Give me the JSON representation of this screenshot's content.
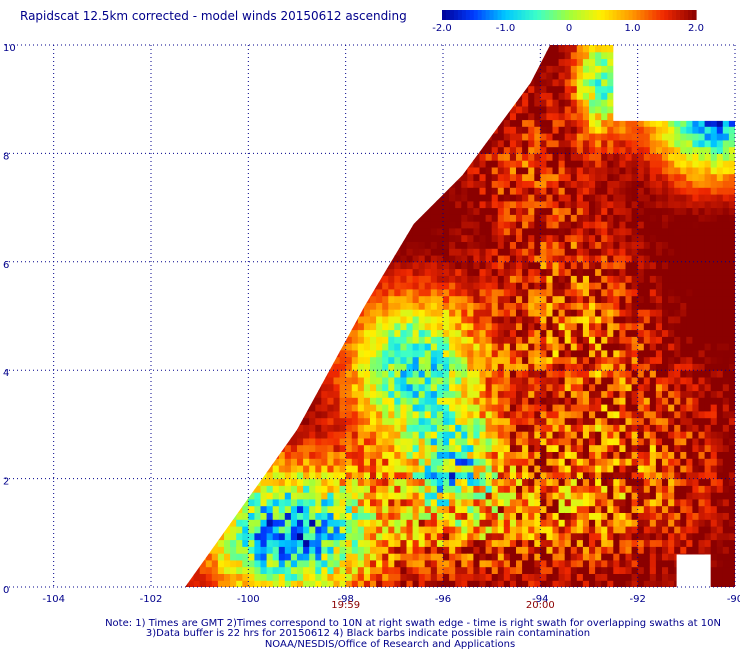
{
  "chart_data": {
    "type": "heatmap",
    "title": "Rapidscat 12.5km corrected - model winds 20150612 ascending",
    "colorbar": {
      "tick_labels": [
        "-2.0",
        "-1.0",
        "0",
        "1.0",
        "2.0"
      ],
      "range": [
        -2.0,
        2.0
      ],
      "colormap": "blue-cyan-green-yellow-orange-red-darkred"
    },
    "x_axis": {
      "range": [
        -105,
        -90
      ],
      "ticks": [
        -104,
        -102,
        -100,
        -98,
        -96,
        -94,
        -92,
        -90
      ],
      "tick_labels": [
        "-104",
        "-102",
        "-100",
        "-98",
        "-96",
        "-94",
        "-92",
        "-90"
      ],
      "grid": "dotted"
    },
    "y_axis": {
      "range": [
        0,
        10
      ],
      "ticks": [
        0,
        2,
        4,
        6,
        8,
        10
      ],
      "tick_labels": [
        "0",
        "2",
        "4",
        "6",
        "8",
        "10"
      ],
      "grid": "dotted"
    },
    "time_labels": [
      {
        "lon": -98,
        "text": "19:59"
      },
      {
        "lon": -94,
        "text": "20:00"
      }
    ],
    "swath_edge": [
      [
        -101.3,
        0
      ],
      [
        -99,
        2.9
      ],
      [
        -97.6,
        5.2
      ],
      [
        -96.6,
        6.7
      ],
      [
        -95.6,
        7.6
      ],
      [
        -94.2,
        9.3
      ],
      [
        -93.8,
        10
      ]
    ],
    "masked_regions": [
      {
        "lat": [
          8.6,
          10
        ],
        "lon": [
          -92.5,
          -90
        ]
      },
      {
        "lat": [
          0,
          0.6
        ],
        "lon": [
          -91.2,
          -90.5
        ]
      }
    ],
    "field_summary": {
      "dominant_value": "> 2.0 (dark red) over most of the swath",
      "negative_regions": [
        "near 8.5-10N, 91-90W (blue)",
        "near 0-2N, 101-98W (cyan)",
        "near 3-5N, 98-96W (cyan)"
      ]
    },
    "notes": [
      "Note: 1) Times are GMT 2)Times correspond to 10N at right swath edge - time is right swath for overlapping swaths at 10N",
      "3)Data buffer is 22 hrs for 20150612 4) Black barbs indicate possible rain contamination",
      "NOAA/NESDIS/Office of Research and Applications"
    ]
  },
  "colors": {
    "axis_label": "#00008b",
    "time_label": "#8b0000",
    "title": "#00008b"
  }
}
